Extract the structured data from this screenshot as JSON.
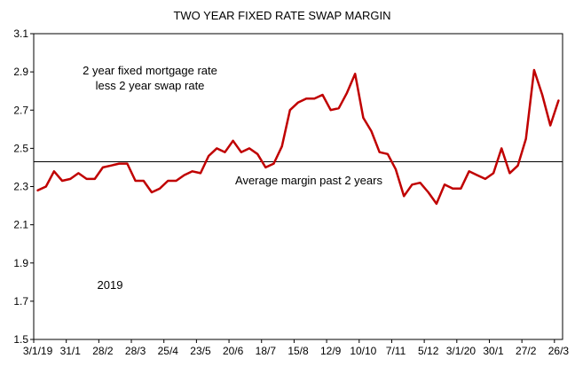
{
  "chart_data": {
    "type": "line",
    "title": "TWO YEAR FIXED RATE SWAP MARGIN",
    "xlabel": "",
    "ylabel": "",
    "ylim": [
      1.5,
      3.1
    ],
    "yticks": [
      "1.5",
      "1.7",
      "1.9",
      "2.1",
      "2.3",
      "2.5",
      "2.7",
      "2.9",
      "3.1"
    ],
    "xtick_labels": [
      "3/1/19",
      "31/1",
      "28/2",
      "28/3",
      "25/4",
      "23/5",
      "20/6",
      "18/7",
      "15/8",
      "12/9",
      "10/10",
      "7/11",
      "5/12",
      "3/1/20",
      "30/1",
      "27/2",
      "26/3"
    ],
    "grid": false,
    "series": [
      {
        "color": "#c00000",
        "values": [
          2.28,
          2.3,
          2.38,
          2.33,
          2.34,
          2.37,
          2.34,
          2.34,
          2.4,
          2.41,
          2.42,
          2.42,
          2.33,
          2.33,
          2.27,
          2.29,
          2.33,
          2.33,
          2.36,
          2.38,
          2.37,
          2.46,
          2.5,
          2.48,
          2.54,
          2.48,
          2.5,
          2.47,
          2.4,
          2.42,
          2.51,
          2.7,
          2.74,
          2.76,
          2.76,
          2.78,
          2.7,
          2.71,
          2.79,
          2.89,
          2.66,
          2.59,
          2.48,
          2.47,
          2.39,
          2.25,
          2.31,
          2.32,
          2.27,
          2.21,
          2.31,
          2.29,
          2.29,
          2.38,
          2.36,
          2.34,
          2.37,
          2.5,
          2.37,
          2.41,
          2.55,
          2.91,
          2.78,
          2.62,
          2.75
        ]
      }
    ],
    "reference_line": {
      "value": 2.43,
      "label": "Average margin past 2 years",
      "color": "#000000"
    },
    "annotations": {
      "series_note_line1": "2 year fixed mortgage rate",
      "series_note_line2": "less 2 year swap rate",
      "year_note": "2019"
    }
  }
}
